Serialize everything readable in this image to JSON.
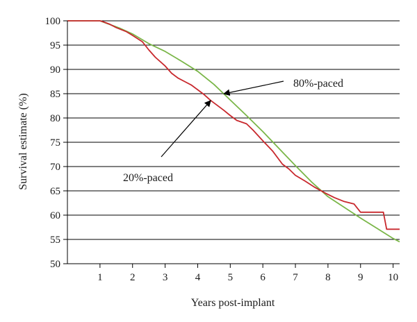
{
  "chart_data": {
    "type": "line",
    "xlabel": "Years post-implant",
    "ylabel": "Survival estimate (%)",
    "xlim": [
      0,
      10.2
    ],
    "ylim": [
      50,
      100
    ],
    "xticks": [
      "1",
      "2",
      "3",
      "4",
      "5",
      "6",
      "7",
      "8",
      "9",
      "10"
    ],
    "yticks": [
      "50",
      "55",
      "60",
      "65",
      "70",
      "75",
      "80",
      "85",
      "90",
      "95",
      "100"
    ],
    "grid": "horizontal",
    "series": [
      {
        "name": "80%-paced",
        "color": "#7ab648",
        "points": [
          [
            0,
            100
          ],
          [
            1,
            100
          ],
          [
            1.2,
            99.5
          ],
          [
            1.6,
            98.5
          ],
          [
            2,
            97.3
          ],
          [
            2.5,
            95.3
          ],
          [
            3,
            93.7
          ],
          [
            3.5,
            91.7
          ],
          [
            4,
            89.6
          ],
          [
            4.5,
            86.9
          ],
          [
            5,
            83.7
          ],
          [
            5.5,
            80.5
          ],
          [
            6,
            77.2
          ],
          [
            6.5,
            73.7
          ],
          [
            7,
            70.2
          ],
          [
            7.5,
            66.8
          ],
          [
            8,
            63.8
          ],
          [
            8.5,
            61.6
          ],
          [
            9,
            59.4
          ],
          [
            9.5,
            57.3
          ],
          [
            10,
            55.2
          ],
          [
            10.2,
            54.5
          ]
        ]
      },
      {
        "name": "20%-paced",
        "color": "#c8282d",
        "points": [
          [
            0,
            100
          ],
          [
            1,
            100
          ],
          [
            1.1,
            99.8
          ],
          [
            1.3,
            99.3
          ],
          [
            1.5,
            98.6
          ],
          [
            1.8,
            97.8
          ],
          [
            2,
            97
          ],
          [
            2.3,
            95.7
          ],
          [
            2.5,
            94
          ],
          [
            2.7,
            92.5
          ],
          [
            3,
            90.7
          ],
          [
            3.2,
            89.2
          ],
          [
            3.4,
            88.2
          ],
          [
            3.6,
            87.5
          ],
          [
            3.8,
            86.8
          ],
          [
            4,
            85.8
          ],
          [
            4.2,
            84.8
          ],
          [
            4.4,
            83.6
          ],
          [
            4.6,
            82.6
          ],
          [
            4.8,
            81.6
          ],
          [
            5,
            80.5
          ],
          [
            5.2,
            79.5
          ],
          [
            5.5,
            78.8
          ],
          [
            5.7,
            77.5
          ],
          [
            6,
            75.3
          ],
          [
            6.3,
            73.2
          ],
          [
            6.6,
            70.5
          ],
          [
            6.8,
            69.5
          ],
          [
            7,
            68.2
          ],
          [
            7.3,
            67
          ],
          [
            7.6,
            65.7
          ],
          [
            7.9,
            64.6
          ],
          [
            8.2,
            63.6
          ],
          [
            8.5,
            62.8
          ],
          [
            8.8,
            62.3
          ],
          [
            9,
            60.6
          ],
          [
            9.7,
            60.6
          ],
          [
            9.8,
            57.1
          ],
          [
            10.2,
            57.1
          ]
        ]
      }
    ],
    "annotations": [
      {
        "text": "80%-paced",
        "series": "80%-paced",
        "at_x": 4.8
      },
      {
        "text": "20%-paced",
        "series": "20%-paced",
        "at_x": 4.4
      }
    ]
  }
}
